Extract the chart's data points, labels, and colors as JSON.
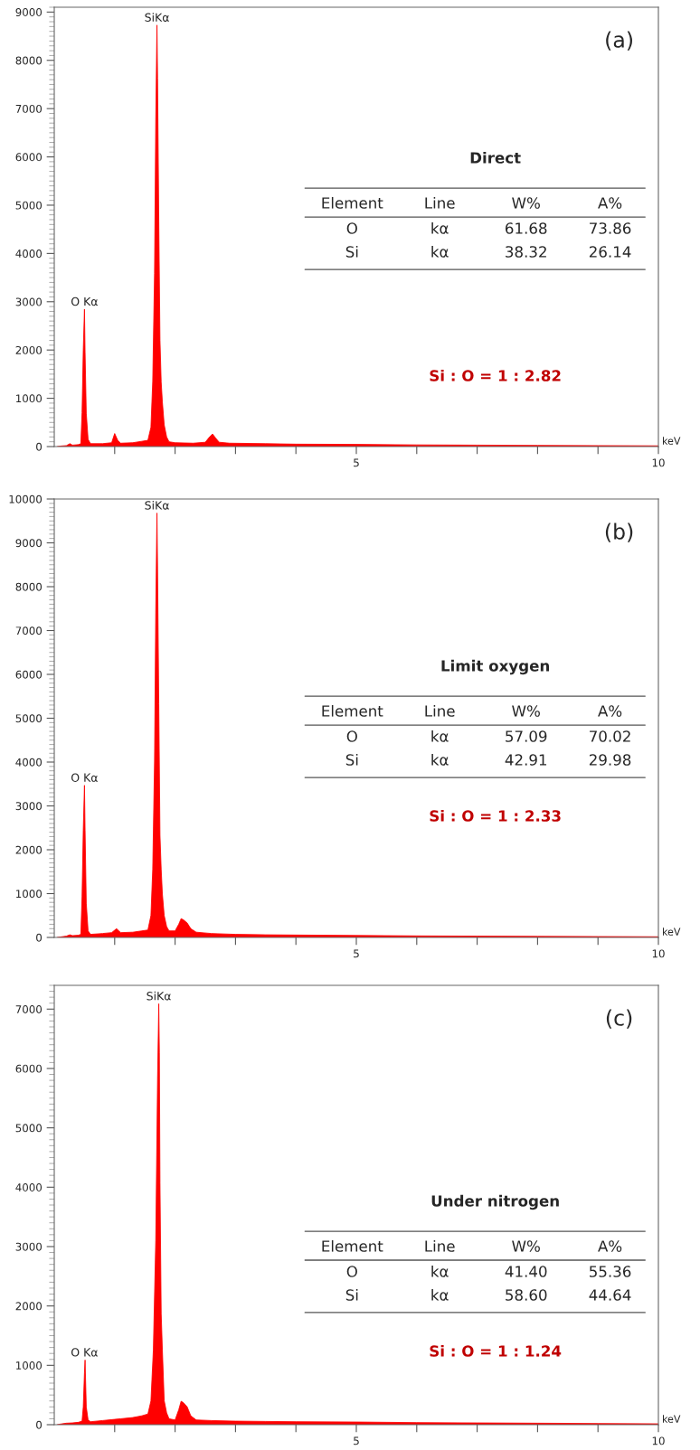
{
  "chart_data": [
    {
      "type": "area",
      "xlabel": "keV",
      "xlim": [
        0,
        10
      ],
      "ylim": [
        0,
        9100
      ],
      "xticks": [
        {
          "value": 1,
          "label": null
        },
        {
          "value": 2,
          "label": null
        },
        {
          "value": 3,
          "label": null
        },
        {
          "value": 4,
          "label": null
        },
        5,
        {
          "value": 6,
          "label": null
        },
        {
          "value": 7,
          "label": null
        },
        {
          "value": 8,
          "label": null
        },
        {
          "value": 9,
          "label": null
        },
        10
      ],
      "yticks": [
        0,
        1000,
        2000,
        3000,
        4000,
        5000,
        6000,
        7000,
        8000,
        9000
      ],
      "grid": false,
      "legend": false,
      "x": [
        0.05,
        0.1,
        0.2,
        0.26,
        0.3,
        0.4,
        0.44,
        0.46,
        0.48,
        0.5,
        0.51,
        0.53,
        0.56,
        0.6,
        0.8,
        0.95,
        1.0,
        1.05,
        1.1,
        1.3,
        1.45,
        1.55,
        1.6,
        1.63,
        1.66,
        1.68,
        1.7,
        1.71,
        1.73,
        1.75,
        1.77,
        1.79,
        1.82,
        1.86,
        1.9,
        2.0,
        2.3,
        2.5,
        2.57,
        2.62,
        2.67,
        2.73,
        2.9,
        3.5,
        4,
        5,
        6,
        7,
        8,
        9,
        10
      ],
      "series": [
        {
          "color": "#ff0000",
          "values": [
            0,
            10,
            20,
            60,
            30,
            40,
            60,
            700,
            2000,
            2845,
            1950,
            690,
            150,
            60,
            60,
            80,
            270,
            130,
            70,
            80,
            110,
            130,
            400,
            1350,
            3590,
            6740,
            8730,
            7630,
            4680,
            2200,
            1335,
            920,
            450,
            200,
            100,
            80,
            70,
            90,
            200,
            260,
            180,
            90,
            70,
            60,
            50,
            45,
            35,
            30,
            25,
            20,
            15
          ]
        }
      ],
      "annotations": [
        "(a)",
        "Direct",
        "Element",
        "Line",
        "W%",
        "A%",
        "O",
        "kα",
        "61.68",
        "73.86",
        "Si",
        "kα",
        "38.32",
        "26.14",
        "Si : O = 1 : 2.82",
        {
          "text": "O Kα",
          "x": 0.5,
          "y": 2845
        },
        {
          "text": "SiKα",
          "x": 1.7,
          "y": 8730
        }
      ]
    },
    {
      "type": "area",
      "xlabel": "keV",
      "xlim": [
        0,
        10
      ],
      "ylim": [
        0,
        10000
      ],
      "xticks": [
        {
          "value": 1,
          "label": null
        },
        {
          "value": 2,
          "label": null
        },
        {
          "value": 3,
          "label": null
        },
        {
          "value": 4,
          "label": null
        },
        5,
        {
          "value": 6,
          "label": null
        },
        {
          "value": 7,
          "label": null
        },
        {
          "value": 8,
          "label": null
        },
        {
          "value": 9,
          "label": null
        },
        10
      ],
      "yticks": [
        0,
        1000,
        2000,
        3000,
        4000,
        5000,
        6000,
        7000,
        8000,
        9000,
        10000
      ],
      "grid": false,
      "legend": false,
      "x": [
        0.05,
        0.1,
        0.2,
        0.26,
        0.3,
        0.4,
        0.44,
        0.46,
        0.48,
        0.5,
        0.51,
        0.53,
        0.56,
        0.6,
        0.8,
        0.95,
        1.03,
        1.1,
        1.3,
        1.45,
        1.55,
        1.6,
        1.63,
        1.66,
        1.68,
        1.7,
        1.71,
        1.73,
        1.75,
        1.77,
        1.79,
        1.82,
        1.86,
        1.9,
        2.0,
        2.06,
        2.1,
        2.14,
        2.2,
        2.26,
        2.35,
        2.6,
        3,
        3.5,
        4,
        5,
        6,
        7,
        8,
        9,
        10
      ],
      "series": [
        {
          "color": "#ff0000",
          "values": [
            0,
            10,
            30,
            60,
            40,
            50,
            70,
            930,
            2450,
            3470,
            2450,
            780,
            150,
            70,
            90,
            110,
            200,
            110,
            120,
            150,
            170,
            500,
            1550,
            4020,
            7420,
            9680,
            8410,
            5330,
            2330,
            1550,
            990,
            500,
            250,
            150,
            150,
            300,
            430,
            400,
            330,
            200,
            120,
            90,
            70,
            60,
            55,
            45,
            35,
            30,
            25,
            20,
            15
          ]
        }
      ],
      "annotations": [
        "(b)",
        "Limit oxygen",
        "Element",
        "Line",
        "W%",
        "A%",
        "O",
        "kα",
        "57.09",
        "70.02",
        "Si",
        "kα",
        "42.91",
        "29.98",
        "Si : O = 1 : 2.33",
        {
          "text": "O Kα",
          "x": 0.5,
          "y": 3470
        },
        {
          "text": "SiKα",
          "x": 1.7,
          "y": 9680
        }
      ]
    },
    {
      "type": "area",
      "xlabel": "keV",
      "xlim": [
        0,
        10
      ],
      "ylim": [
        0,
        7400
      ],
      "xticks": [
        {
          "value": 1,
          "label": null
        },
        {
          "value": 2,
          "label": null
        },
        {
          "value": 3,
          "label": null
        },
        {
          "value": 4,
          "label": null
        },
        5,
        {
          "value": 6,
          "label": null
        },
        {
          "value": 7,
          "label": null
        },
        {
          "value": 8,
          "label": null
        },
        {
          "value": 9,
          "label": null
        },
        10
      ],
      "yticks": [
        0,
        1000,
        2000,
        3000,
        4000,
        5000,
        6000,
        7000
      ],
      "grid": false,
      "legend": false,
      "x": [
        0.05,
        0.1,
        0.2,
        0.3,
        0.4,
        0.46,
        0.48,
        0.5,
        0.51,
        0.53,
        0.56,
        0.6,
        0.8,
        1.0,
        1.1,
        1.3,
        1.45,
        1.55,
        1.6,
        1.64,
        1.68,
        1.71,
        1.73,
        1.74,
        1.75,
        1.77,
        1.79,
        1.82,
        1.86,
        1.9,
        2.0,
        2.06,
        2.1,
        2.14,
        2.2,
        2.26,
        2.35,
        2.6,
        3,
        3.5,
        4,
        5,
        6,
        7,
        8,
        9,
        10
      ],
      "series": [
        {
          "color": "#ff0000",
          "values": [
            0,
            10,
            25,
            30,
            40,
            60,
            300,
            880,
            1090,
            300,
            80,
            50,
            70,
            90,
            100,
            120,
            150,
            180,
            400,
            1250,
            3100,
            5830,
            7090,
            6260,
            4070,
            1870,
            1250,
            405,
            200,
            100,
            80,
            250,
            395,
            370,
            300,
            150,
            80,
            70,
            60,
            55,
            50,
            45,
            35,
            30,
            25,
            20,
            15
          ]
        }
      ],
      "annotations": [
        "(c)",
        "Under nitrogen",
        "Element",
        "Line",
        "W%",
        "A%",
        "O",
        "kα",
        "41.40",
        "55.36",
        "Si",
        "kα",
        "58.60",
        "44.64",
        "Si : O = 1 : 1.24",
        {
          "text": "O Kα",
          "x": 0.5,
          "y": 1090
        },
        {
          "text": "SiKα",
          "x": 1.73,
          "y": 7090
        }
      ]
    }
  ]
}
